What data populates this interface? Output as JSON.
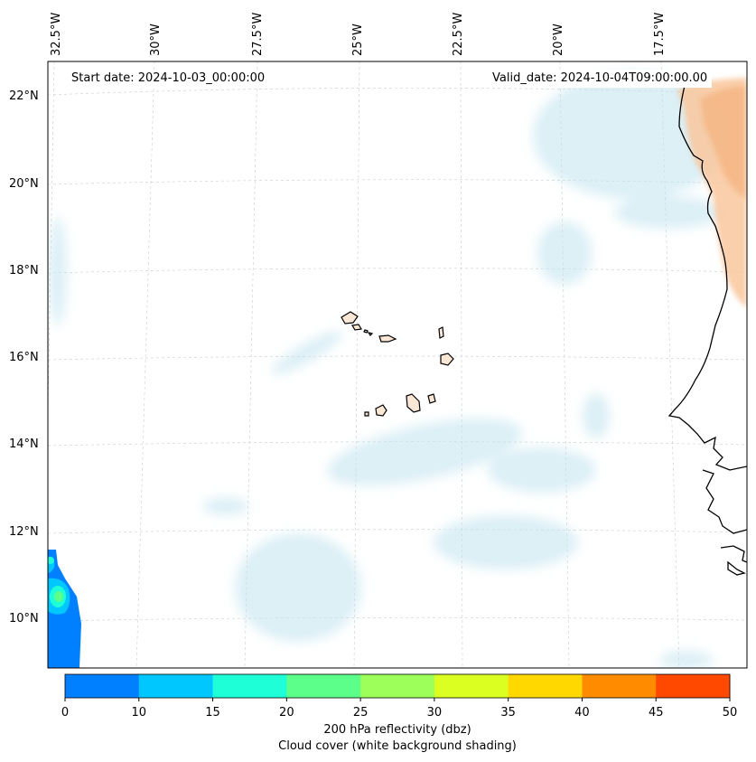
{
  "map": {
    "start_date": "Start date: 2024-10-03_00:00:00",
    "valid_date": "Valid_date: 2024-10-04T09:00:00.00",
    "lon_labels": [
      "32.5°W",
      "30°W",
      "27.5°W",
      "25°W",
      "22.5°W",
      "20°W",
      "17.5°W"
    ],
    "lat_labels": [
      "22°N",
      "20°N",
      "18°N",
      "16°N",
      "14°N",
      "12°N",
      "10°N"
    ],
    "coastline_color": "#000000",
    "grid_color": "#cccccc"
  },
  "colorbar": {
    "ticks": [
      "0",
      "10",
      "15",
      "20",
      "25",
      "30",
      "35",
      "40",
      "45",
      "50"
    ],
    "colors": [
      "#0080ff",
      "#00c8ff",
      "#1effd8",
      "#5cff8a",
      "#9cff5a",
      "#daff20",
      "#ffd800",
      "#ff8c00",
      "#ff4800"
    ],
    "label": "200 hPa reflectivity (dbz)",
    "sublabel": "Cloud cover (white background shading)"
  }
}
